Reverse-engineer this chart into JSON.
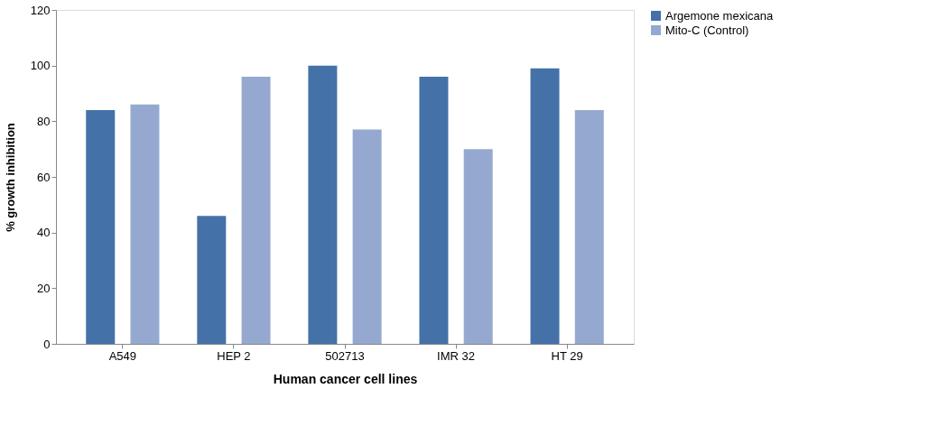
{
  "chart_data": {
    "type": "bar",
    "xlabel": "Human cancer cell lines",
    "ylabel": "% growth inhibition",
    "categories": [
      "A549",
      "HEP 2",
      "502713",
      "IMR 32",
      "HT 29"
    ],
    "series": [
      {
        "name": "Argemone mexicana",
        "color": "#4472a8",
        "values": [
          84,
          46,
          100,
          96,
          99
        ]
      },
      {
        "name": "Mito-C (Control)",
        "color": "#95a9d0",
        "values": [
          86,
          96,
          77,
          70,
          84
        ]
      }
    ],
    "ylim": [
      0,
      120
    ],
    "yticks": [
      0,
      20,
      40,
      60,
      80,
      100,
      120
    ],
    "grid": false,
    "legend": "right"
  }
}
